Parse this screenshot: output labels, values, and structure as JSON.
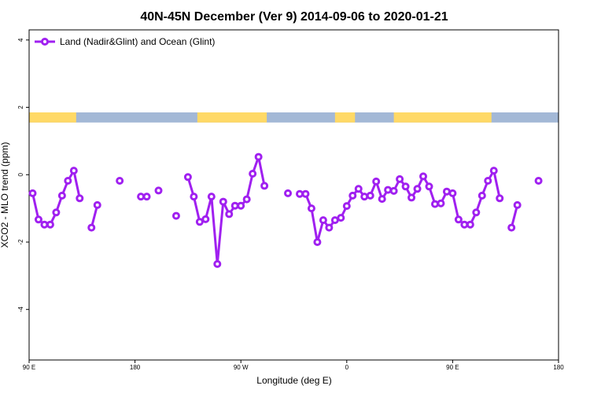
{
  "chart_data": {
    "type": "line",
    "title": "40N-45N December (Ver 9)   2014-09-06 to 2020-01-21",
    "xlabel": "Longitude (deg E)",
    "ylabel": "XCO2 - MLO trend (ppm)",
    "x_ticks": [
      {
        "value": 90,
        "label": "90 E"
      },
      {
        "value": 180,
        "label": "180"
      },
      {
        "value": 270,
        "label": "90 W"
      },
      {
        "value": 360,
        "label": "0"
      },
      {
        "value": 450,
        "label": "90 E"
      },
      {
        "value": 540,
        "label": "180"
      }
    ],
    "y_ticks": [
      4,
      2,
      0,
      -2,
      -4
    ],
    "xlim": [
      90,
      540
    ],
    "ylim": [
      -5.5,
      4.3
    ],
    "grid": false,
    "legend_position": "top-left",
    "series": [
      {
        "name": "Land (Nadir&Glint) and Ocean (Glint)",
        "color": "#a020f0",
        "segments": [
          [
            [
              93,
              -0.55
            ],
            [
              98,
              -1.33
            ],
            [
              103,
              -1.48
            ],
            [
              108,
              -1.48
            ],
            [
              113,
              -1.12
            ],
            [
              118,
              -0.62
            ],
            [
              123,
              -0.18
            ],
            [
              128,
              0.12
            ],
            [
              133,
              -0.7
            ]
          ],
          [
            [
              143,
              -1.57
            ],
            [
              148,
              -0.9
            ]
          ],
          [
            [
              167,
              -0.18
            ]
          ],
          [
            [
              185,
              -0.65
            ],
            [
              190,
              -0.65
            ]
          ],
          [
            [
              200,
              -0.47
            ]
          ],
          [
            [
              215,
              -1.22
            ]
          ],
          [
            [
              225,
              -0.07
            ],
            [
              230,
              -0.65
            ],
            [
              235,
              -1.4
            ],
            [
              240,
              -1.32
            ],
            [
              245,
              -0.65
            ],
            [
              250,
              -2.65
            ],
            [
              255,
              -0.8
            ],
            [
              260,
              -1.17
            ],
            [
              265,
              -0.92
            ],
            [
              270,
              -0.92
            ],
            [
              275,
              -0.73
            ],
            [
              280,
              0.03
            ],
            [
              285,
              0.53
            ],
            [
              290,
              -0.33
            ]
          ],
          [
            [
              310,
              -0.55
            ]
          ],
          [
            [
              320,
              -0.57
            ],
            [
              325,
              -0.57
            ],
            [
              330,
              -1.0
            ],
            [
              335,
              -2.0
            ],
            [
              340,
              -1.35
            ],
            [
              345,
              -1.57
            ],
            [
              350,
              -1.35
            ],
            [
              355,
              -1.28
            ],
            [
              360,
              -0.93
            ],
            [
              365,
              -0.62
            ],
            [
              370,
              -0.42
            ],
            [
              375,
              -0.65
            ],
            [
              380,
              -0.62
            ],
            [
              385,
              -0.2
            ],
            [
              390,
              -0.72
            ],
            [
              395,
              -0.45
            ],
            [
              400,
              -0.48
            ],
            [
              405,
              -0.13
            ],
            [
              410,
              -0.35
            ],
            [
              415,
              -0.68
            ],
            [
              420,
              -0.42
            ],
            [
              425,
              -0.05
            ],
            [
              430,
              -0.35
            ],
            [
              435,
              -0.87
            ],
            [
              440,
              -0.85
            ],
            [
              445,
              -0.5
            ],
            [
              450,
              -0.55
            ],
            [
              455,
              -1.33
            ],
            [
              460,
              -1.48
            ],
            [
              465,
              -1.48
            ],
            [
              470,
              -1.12
            ],
            [
              475,
              -0.62
            ],
            [
              480,
              -0.18
            ],
            [
              485,
              0.12
            ],
            [
              490,
              -0.7
            ]
          ],
          [
            [
              500,
              -1.57
            ],
            [
              505,
              -0.9
            ]
          ],
          [
            [
              523,
              -0.18
            ]
          ]
        ]
      }
    ],
    "land_ocean_band": {
      "y_range": [
        1.55,
        1.85
      ],
      "land_color": "#ffd966",
      "ocean_color": "#a3b8d6",
      "land_intervals": [
        [
          90,
          130
        ],
        [
          233,
          292
        ],
        [
          350,
          367
        ],
        [
          400,
          483
        ]
      ]
    }
  }
}
